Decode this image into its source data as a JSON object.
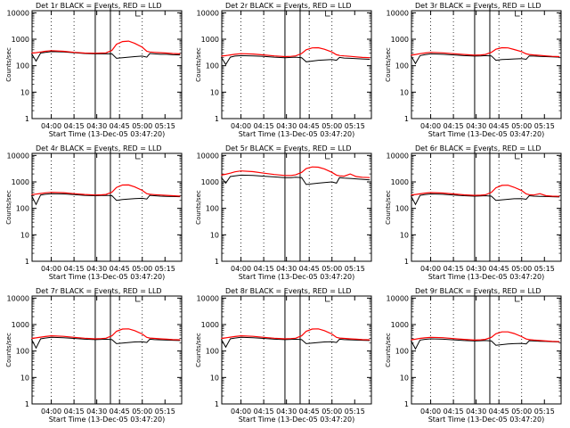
{
  "chart_data": {
    "type": "line",
    "y_scale": "log",
    "ylim": [
      1,
      12000
    ],
    "y_ticks": [
      1,
      10,
      100,
      1000,
      10000
    ],
    "y_tick_labels": [
      "1",
      "10",
      "100",
      "1000",
      "10000"
    ],
    "xlim": [
      "03:47:20",
      "05:26:00"
    ],
    "x_tick_labels": [
      "04:00",
      "04:15",
      "04:30",
      "04:45",
      "05:00",
      "05:15"
    ],
    "xlabel": "Start Time (13-Dec-05 03:47:20)",
    "ylabel": "Counts/sec",
    "grid": "dotted vertical lines at 04:00, 04:15, 04:45, 05:00",
    "series_colors": {
      "events": "#000000",
      "lld": "#ff0000"
    },
    "vertical_markers": [
      "04:29",
      "04:39"
    ],
    "panels": [
      {
        "title": "Det 1r BLACK = Events, RED = LLD",
        "x": [
          "03:47",
          "03:50",
          "03:53",
          "03:56",
          "04:00",
          "04:08",
          "04:15",
          "04:22",
          "04:29",
          "04:33",
          "04:36",
          "04:40",
          "04:43",
          "04:47",
          "04:51",
          "04:55",
          "05:00",
          "05:03",
          "05:05",
          "05:08",
          "05:12",
          "05:16",
          "05:20",
          "05:25"
        ],
        "events": [
          290,
          150,
          300,
          320,
          340,
          330,
          310,
          290,
          280,
          280,
          285,
          280,
          190,
          200,
          210,
          220,
          230,
          210,
          290,
          280,
          270,
          270,
          260,
          255
        ],
        "lld": [
          300,
          310,
          330,
          350,
          370,
          350,
          320,
          300,
          295,
          300,
          305,
          380,
          650,
          820,
          850,
          700,
          500,
          350,
          330,
          320,
          310,
          300,
          290,
          280
        ]
      },
      {
        "title": "Det 2r BLACK = Events, RED = LLD",
        "x": [
          "03:47",
          "03:50",
          "03:53",
          "03:56",
          "04:00",
          "04:08",
          "04:15",
          "04:22",
          "04:29",
          "04:33",
          "04:36",
          "04:40",
          "04:43",
          "04:47",
          "04:51",
          "04:55",
          "05:00",
          "05:03",
          "05:05",
          "05:08",
          "05:12",
          "05:16",
          "05:20",
          "05:25"
        ],
        "events": [
          210,
          110,
          210,
          230,
          240,
          235,
          225,
          210,
          200,
          205,
          210,
          200,
          140,
          150,
          160,
          165,
          170,
          160,
          205,
          195,
          190,
          185,
          180,
          175
        ],
        "lld": [
          230,
          240,
          255,
          270,
          285,
          275,
          255,
          235,
          220,
          225,
          235,
          290,
          400,
          470,
          480,
          420,
          330,
          260,
          245,
          235,
          225,
          215,
          205,
          200
        ]
      },
      {
        "title": "Det 3r BLACK = Events, RED = LLD",
        "x": [
          "03:47",
          "03:50",
          "03:53",
          "03:56",
          "04:00",
          "04:08",
          "04:15",
          "04:22",
          "04:29",
          "04:33",
          "04:36",
          "04:40",
          "04:43",
          "04:47",
          "04:51",
          "04:55",
          "05:00",
          "05:03",
          "05:05",
          "05:08",
          "05:12",
          "05:16",
          "05:20",
          "05:25"
        ],
        "events": [
          240,
          120,
          240,
          260,
          280,
          270,
          255,
          240,
          230,
          235,
          240,
          235,
          160,
          170,
          175,
          180,
          185,
          175,
          235,
          230,
          225,
          220,
          215,
          210
        ],
        "lld": [
          250,
          265,
          285,
          300,
          320,
          305,
          285,
          265,
          250,
          255,
          265,
          320,
          420,
          480,
          470,
          410,
          340,
          280,
          265,
          255,
          245,
          235,
          225,
          220
        ]
      },
      {
        "title": "Det 4r BLACK = Events, RED = LLD",
        "x": [
          "03:47",
          "03:50",
          "03:53",
          "03:56",
          "04:00",
          "04:08",
          "04:15",
          "04:22",
          "04:29",
          "04:33",
          "04:36",
          "04:40",
          "04:43",
          "04:47",
          "04:51",
          "04:55",
          "05:00",
          "05:03",
          "05:05",
          "05:08",
          "05:12",
          "05:16",
          "05:20",
          "05:25"
        ],
        "events": [
          310,
          140,
          320,
          340,
          360,
          350,
          330,
          310,
          300,
          305,
          310,
          300,
          200,
          215,
          225,
          235,
          240,
          225,
          310,
          300,
          290,
          285,
          280,
          275
        ],
        "lld": [
          330,
          345,
          365,
          385,
          405,
          390,
          360,
          335,
          320,
          325,
          335,
          410,
          620,
          760,
          770,
          650,
          480,
          360,
          340,
          330,
          320,
          310,
          300,
          290
        ]
      },
      {
        "title": "Det 5r BLACK = Events, RED = LLD",
        "x": [
          "03:47",
          "03:50",
          "03:53",
          "03:56",
          "04:00",
          "04:08",
          "04:15",
          "04:22",
          "04:29",
          "04:33",
          "04:36",
          "04:40",
          "04:43",
          "04:47",
          "04:51",
          "04:55",
          "05:00",
          "05:03",
          "05:05",
          "05:08",
          "05:12",
          "05:16",
          "05:20",
          "05:25"
        ],
        "events": [
          1500,
          900,
          1600,
          1700,
          1800,
          1750,
          1650,
          1550,
          1450,
          1450,
          1500,
          1450,
          800,
          850,
          900,
          950,
          1000,
          900,
          1450,
          1400,
          1350,
          1300,
          1250,
          1200
        ],
        "lld": [
          1800,
          1950,
          2150,
          2400,
          2600,
          2450,
          2150,
          1900,
          1750,
          1750,
          1850,
          2300,
          3200,
          3700,
          3600,
          3100,
          2300,
          1800,
          1700,
          1650,
          2000,
          1600,
          1500,
          1450
        ]
      },
      {
        "title": "Det 6r BLACK = Events, RED = LLD",
        "x": [
          "03:47",
          "03:50",
          "03:53",
          "03:56",
          "04:00",
          "04:08",
          "04:15",
          "04:22",
          "04:29",
          "04:33",
          "04:36",
          "04:40",
          "04:43",
          "04:47",
          "04:51",
          "04:55",
          "05:00",
          "05:03",
          "05:05",
          "05:08",
          "05:12",
          "05:16",
          "05:20",
          "05:25"
        ],
        "events": [
          300,
          140,
          310,
          330,
          350,
          340,
          320,
          300,
          290,
          295,
          300,
          290,
          200,
          210,
          220,
          230,
          235,
          220,
          300,
          290,
          285,
          280,
          275,
          270
        ],
        "lld": [
          320,
          335,
          355,
          375,
          395,
          380,
          350,
          325,
          310,
          315,
          325,
          400,
          600,
          740,
          750,
          630,
          470,
          350,
          330,
          320,
          360,
          300,
          290,
          285
        ]
      },
      {
        "title": "Det 7r BLACK = Events, RED = LLD",
        "x": [
          "03:47",
          "03:50",
          "03:53",
          "03:56",
          "04:00",
          "04:08",
          "04:15",
          "04:22",
          "04:29",
          "04:33",
          "04:36",
          "04:40",
          "04:43",
          "04:47",
          "04:51",
          "04:55",
          "05:00",
          "05:03",
          "05:05",
          "05:08",
          "05:12",
          "05:16",
          "05:20",
          "05:25"
        ],
        "events": [
          280,
          130,
          290,
          310,
          330,
          320,
          300,
          280,
          270,
          275,
          280,
          270,
          190,
          200,
          210,
          220,
          225,
          210,
          280,
          270,
          265,
          260,
          255,
          250
        ],
        "lld": [
          300,
          315,
          335,
          355,
          375,
          360,
          330,
          305,
          290,
          295,
          305,
          375,
          560,
          680,
          690,
          590,
          440,
          330,
          310,
          300,
          290,
          280,
          270,
          265
        ]
      },
      {
        "title": "Det 8r BLACK = Events, RED = LLD",
        "x": [
          "03:47",
          "03:50",
          "03:53",
          "03:56",
          "04:00",
          "04:08",
          "04:15",
          "04:22",
          "04:29",
          "04:33",
          "04:36",
          "04:40",
          "04:43",
          "04:47",
          "04:51",
          "04:55",
          "05:00",
          "05:03",
          "05:05",
          "05:08",
          "05:12",
          "05:16",
          "05:20",
          "05:25"
        ],
        "events": [
          280,
          140,
          290,
          310,
          330,
          320,
          300,
          280,
          270,
          275,
          280,
          270,
          190,
          200,
          210,
          220,
          225,
          210,
          280,
          270,
          265,
          260,
          255,
          250
        ],
        "lld": [
          300,
          315,
          335,
          355,
          375,
          360,
          330,
          305,
          290,
          295,
          305,
          375,
          560,
          680,
          690,
          590,
          440,
          330,
          310,
          300,
          290,
          280,
          270,
          265
        ]
      },
      {
        "title": "Det 9r BLACK = Events, RED = LLD",
        "x": [
          "03:47",
          "03:50",
          "03:53",
          "03:56",
          "04:00",
          "04:08",
          "04:15",
          "04:22",
          "04:29",
          "04:33",
          "04:36",
          "04:40",
          "04:43",
          "04:47",
          "04:51",
          "04:55",
          "05:00",
          "05:03",
          "05:05",
          "05:08",
          "05:12",
          "05:16",
          "05:20",
          "05:25"
        ],
        "events": [
          250,
          120,
          260,
          275,
          290,
          280,
          265,
          250,
          240,
          245,
          250,
          240,
          165,
          175,
          185,
          190,
          195,
          185,
          245,
          240,
          235,
          230,
          225,
          220
        ],
        "lld": [
          265,
          280,
          300,
          315,
          330,
          320,
          295,
          275,
          260,
          265,
          275,
          330,
          450,
          530,
          530,
          460,
          350,
          285,
          270,
          260,
          250,
          240,
          230,
          225
        ]
      }
    ]
  }
}
